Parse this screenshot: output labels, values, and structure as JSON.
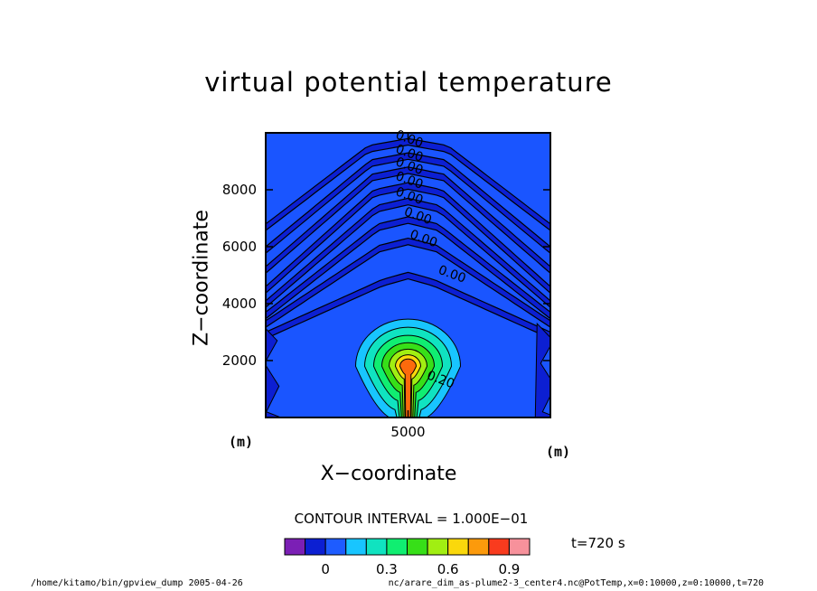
{
  "chart_data": {
    "type": "contour",
    "title": "virtual potential temperature",
    "xlabel": "X−coordinate",
    "ylabel": "Z−coordinate",
    "x_unit": "(m)",
    "y_unit": "(m)",
    "xlim": [
      0,
      10000
    ],
    "ylim": [
      0,
      10000
    ],
    "x_ticks": [
      {
        "value": 5000,
        "label": "5000"
      }
    ],
    "y_ticks": [
      {
        "value": 2000,
        "label": "2000"
      },
      {
        "value": 4000,
        "label": "4000"
      },
      {
        "value": 6000,
        "label": "6000"
      },
      {
        "value": 8000,
        "label": "8000"
      }
    ],
    "contour_interval_text": "CONTOUR INTERVAL = 1.000E−01",
    "contour_labels": [
      {
        "text": "0.00",
        "x": 5000,
        "z": 9650
      },
      {
        "text": "0.00",
        "x": 5000,
        "z": 9150
      },
      {
        "text": "0.00",
        "x": 5000,
        "z": 8700
      },
      {
        "text": "0.00",
        "x": 5000,
        "z": 8200
      },
      {
        "text": "0.00",
        "x": 5000,
        "z": 7650
      },
      {
        "text": "0.00",
        "x": 5300,
        "z": 6950
      },
      {
        "text": "0.00",
        "x": 5500,
        "z": 6150
      },
      {
        "text": "0.00",
        "x": 6500,
        "z": 4900
      },
      {
        "text": "0.20",
        "x": 6100,
        "z": 1200
      }
    ],
    "plume": {
      "center_x": 5000,
      "center_z": 1800,
      "max_value": 0.8
    },
    "colorbar": {
      "colors": [
        "#7b1fb5",
        "#0c1fd2",
        "#1e5cff",
        "#18c5ff",
        "#10e3c0",
        "#10ee71",
        "#37df18",
        "#a1ee12",
        "#fad80c",
        "#fc9a0c",
        "#f93b1e",
        "#f7919b"
      ],
      "tick_labels": [
        "0",
        "0.3",
        "0.6",
        "0.9"
      ]
    },
    "background_color": "#1a55ff",
    "contour_band_color": "#0c1fd2",
    "time_label": "t=720 s"
  },
  "footer": {
    "left": "/home/kitamo/bin/gpview_dump  2005-04-26",
    "right": "nc/arare_dim_as-plume2-3_center4.nc@PotTemp,x=0:10000,z=0:10000,t=720"
  }
}
